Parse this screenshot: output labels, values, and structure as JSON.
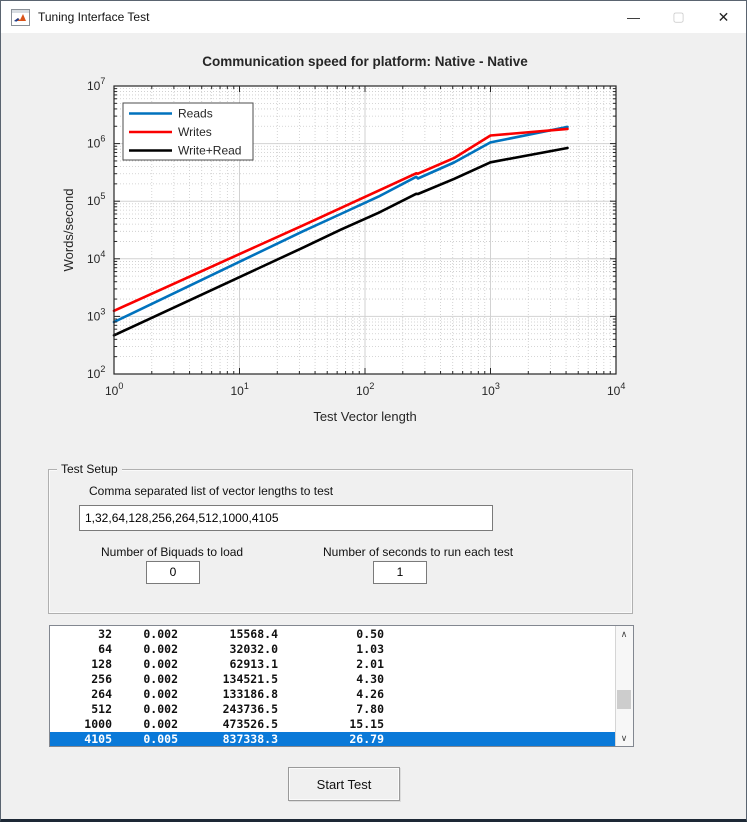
{
  "window": {
    "title": "Tuning Interface Test",
    "minimize_glyph": "—",
    "maximize_glyph": "▢",
    "close_glyph": "✕"
  },
  "chart_data": {
    "type": "line",
    "title": "Communication speed for platform:  Native - Native",
    "xlabel": "Test Vector length",
    "ylabel": "Words/second",
    "xscale": "log",
    "yscale": "log",
    "xlim": [
      1,
      10000
    ],
    "ylim": [
      100,
      10000000
    ],
    "grid": true,
    "legend_position": "top-left",
    "x": [
      1,
      32,
      64,
      128,
      256,
      264,
      512,
      1000,
      4105
    ],
    "series": [
      {
        "name": "Reads",
        "color": "#0072BD",
        "values": [
          800,
          30000,
          60000,
          120000,
          265000,
          248000,
          470000,
          1050000,
          1950000
        ]
      },
      {
        "name": "Writes",
        "color": "#FA0000",
        "values": [
          1250,
          38000,
          76000,
          152000,
          305000,
          300000,
          560000,
          1380000,
          1800000
        ]
      },
      {
        "name": "Write+Read",
        "color": "#000000",
        "values": [
          470,
          15568.4,
          32032.0,
          62913.1,
          134521.5,
          133186.8,
          243736.5,
          473526.5,
          837338.3
        ]
      }
    ]
  },
  "test_setup": {
    "group_label": "Test Setup",
    "vector_lengths_label": "Comma separated list of vector lengths to test",
    "vector_lengths_value": "1,32,64,128,256,264,512,1000,4105",
    "biquads_label": "Number of Biquads to load",
    "biquads_value": "0",
    "seconds_label": "Number of seconds to run each test",
    "seconds_value": "1"
  },
  "results_list": {
    "selected_index": 7,
    "selection_color": "#0a79d8",
    "rows": [
      [
        "32",
        "0.002",
        "15568.4",
        "0.50"
      ],
      [
        "64",
        "0.002",
        "32032.0",
        "1.03"
      ],
      [
        "128",
        "0.002",
        "62913.1",
        "2.01"
      ],
      [
        "256",
        "0.002",
        "134521.5",
        "4.30"
      ],
      [
        "264",
        "0.002",
        "133186.8",
        "4.26"
      ],
      [
        "512",
        "0.002",
        "243736.5",
        "7.80"
      ],
      [
        "1000",
        "0.002",
        "473526.5",
        "15.15"
      ],
      [
        "4105",
        "0.005",
        "837338.3",
        "26.79"
      ]
    ]
  },
  "start_button_label": "Start Test"
}
